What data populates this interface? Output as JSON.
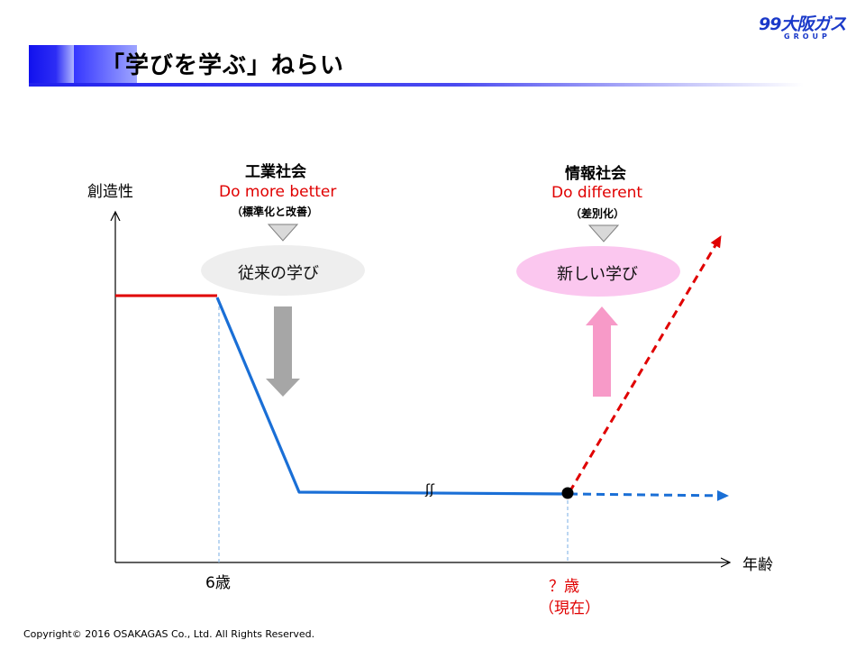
{
  "header": {
    "title": "「学びを学ぶ」ねらい",
    "logo_main": "大阪ガス",
    "logo_sub": "GROUP",
    "logo_mark": "99",
    "accent_color": "#1a1aff"
  },
  "diagram": {
    "y_axis_label": "創造性",
    "x_axis_label": "年齢",
    "age_start": "6歳",
    "age_now": "？歳",
    "age_now_note": "（現在）",
    "industrial": {
      "title": "工業社会",
      "phrase": "Do more better",
      "subtitle": "（標準化と改善）",
      "learning": "従来の学び"
    },
    "information": {
      "title": "情報社会",
      "phrase": "Do different",
      "subtitle": "（差別化）",
      "learning": "新しい学び"
    },
    "break_mark": "ʃʃ",
    "colors": {
      "pre_school_line": "#e00000",
      "creativity_line": "#1a6fd6",
      "future_up_line": "#e00000",
      "arrow_down": "#a6a6a6",
      "arrow_up": "#f79ac8",
      "old_bubble": "#eeeeee",
      "new_bubble": "#fbc7ef"
    }
  },
  "footer": {
    "copyright": "Copyright© 2016 OSAKAGAS Co., Ltd.   All Rights Reserved."
  }
}
